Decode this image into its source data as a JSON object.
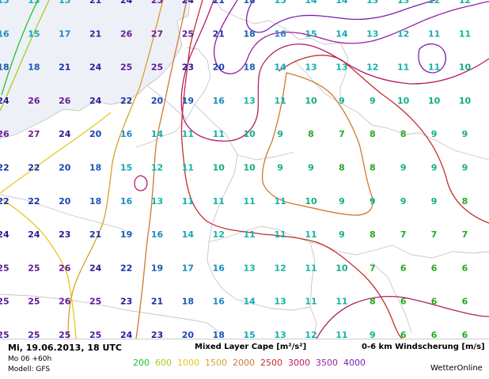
{
  "valid_time": "Mi, 19.06.2013, 18 UTC",
  "run_info": "Mo 06 +60h",
  "model": "Modell: GFS",
  "cape_title": "Mixed Layer Cape [m²/s²]",
  "shear_title": "0-6 km Windscherung [m/s]",
  "brand": "WetterOnline",
  "cape_levels": [
    {
      "label": "200",
      "color": "#22c22a"
    },
    {
      "label": "600",
      "color": "#a6cc1e"
    },
    {
      "label": "1000",
      "color": "#e6c81e"
    },
    {
      "label": "1500",
      "color": "#d8a028"
    },
    {
      "label": "2000",
      "color": "#cc7a2e"
    },
    {
      "label": "2500",
      "color": "#c42e2e"
    },
    {
      "label": "3000",
      "color": "#b41e6a"
    },
    {
      "label": "3500",
      "color": "#9a1ea8"
    },
    {
      "label": "4000",
      "color": "#7a1eb4"
    }
  ],
  "shear_colors": {
    "6": "#22aa22",
    "7": "#22aa22",
    "8": "#22aa22",
    "9": "#10b080",
    "10": "#10b080",
    "11": "#14b4a4",
    "12": "#14b4a4",
    "13": "#14b4a4",
    "14": "#12a8b8",
    "15": "#12a8b8",
    "16": "#1a8cc4",
    "17": "#1a8cc4",
    "18": "#1a5ab4",
    "19": "#1a5ab4",
    "20": "#1a44b4",
    "21": "#1a30a8",
    "22": "#1a30a8",
    "23": "#1e2094",
    "24": "#2a1a9a",
    "25": "#5a1a9a",
    "26": "#6a1a9a",
    "27": "#7a1a94"
  },
  "shear_values": [
    [
      "15",
      "13",
      "15",
      "21",
      "24",
      "25",
      "24",
      "21",
      "18",
      "15",
      "14",
      "14",
      "13",
      "13",
      "12",
      "12"
    ],
    [
      "16",
      "15",
      "17",
      "21",
      "26",
      "27",
      "25",
      "21",
      "18",
      "16",
      "15",
      "14",
      "13",
      "12",
      "11",
      "11"
    ],
    [
      "18",
      "18",
      "21",
      "24",
      "25",
      "25",
      "23",
      "20",
      "18",
      "14",
      "13",
      "13",
      "12",
      "11",
      "11",
      "10"
    ],
    [
      "24",
      "26",
      "26",
      "24",
      "22",
      "20",
      "19",
      "16",
      "13",
      "11",
      "10",
      "9",
      "9",
      "10",
      "10",
      "10"
    ],
    [
      "26",
      "27",
      "24",
      "20",
      "16",
      "14",
      "11",
      "11",
      "10",
      "9",
      "8",
      "7",
      "8",
      "8",
      "9",
      "9"
    ],
    [
      "22",
      "22",
      "20",
      "18",
      "15",
      "12",
      "11",
      "10",
      "10",
      "9",
      "9",
      "8",
      "8",
      "9",
      "9",
      "9"
    ],
    [
      "22",
      "22",
      "20",
      "18",
      "16",
      "13",
      "11",
      "11",
      "11",
      "11",
      "10",
      "9",
      "9",
      "9",
      "9",
      "8"
    ],
    [
      "24",
      "24",
      "23",
      "21",
      "19",
      "16",
      "14",
      "12",
      "11",
      "11",
      "11",
      "9",
      "8",
      "7",
      "7",
      "7"
    ],
    [
      "25",
      "25",
      "26",
      "24",
      "22",
      "19",
      "17",
      "16",
      "13",
      "12",
      "11",
      "10",
      "7",
      "6",
      "6",
      "6"
    ],
    [
      "25",
      "25",
      "26",
      "25",
      "23",
      "21",
      "18",
      "16",
      "14",
      "13",
      "11",
      "11",
      "8",
      "6",
      "6",
      "6"
    ],
    [
      "25",
      "25",
      "25",
      "25",
      "24",
      "23",
      "20",
      "18",
      "15",
      "13",
      "12",
      "11",
      "9",
      "6",
      "6",
      "6"
    ]
  ]
}
